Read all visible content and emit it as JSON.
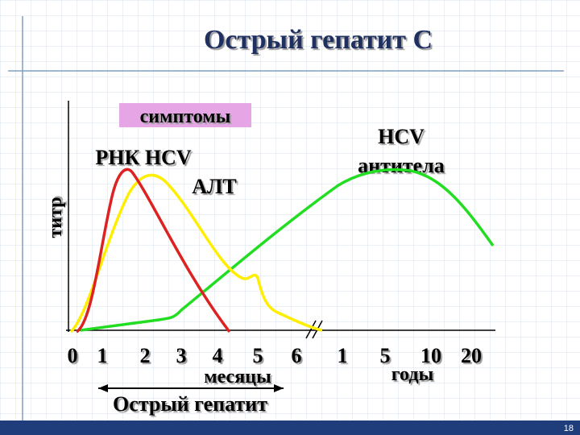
{
  "title": "Острый гепатит С",
  "y_axis_label": "титр",
  "labels": {
    "symptoms": "симптомы",
    "rna": "РНК HCV",
    "alt": "АЛТ",
    "antibodies": [
      "HCV",
      "антитела"
    ]
  },
  "x_ticks_months": [
    "0",
    "1",
    "2",
    "3",
    "4",
    "5",
    "6"
  ],
  "x_ticks_years": [
    "1",
    "5",
    "10",
    "20"
  ],
  "months_label": "месяцы",
  "years_label": "годы",
  "phase_label": "Острый гепатит",
  "page_number": "18"
}
